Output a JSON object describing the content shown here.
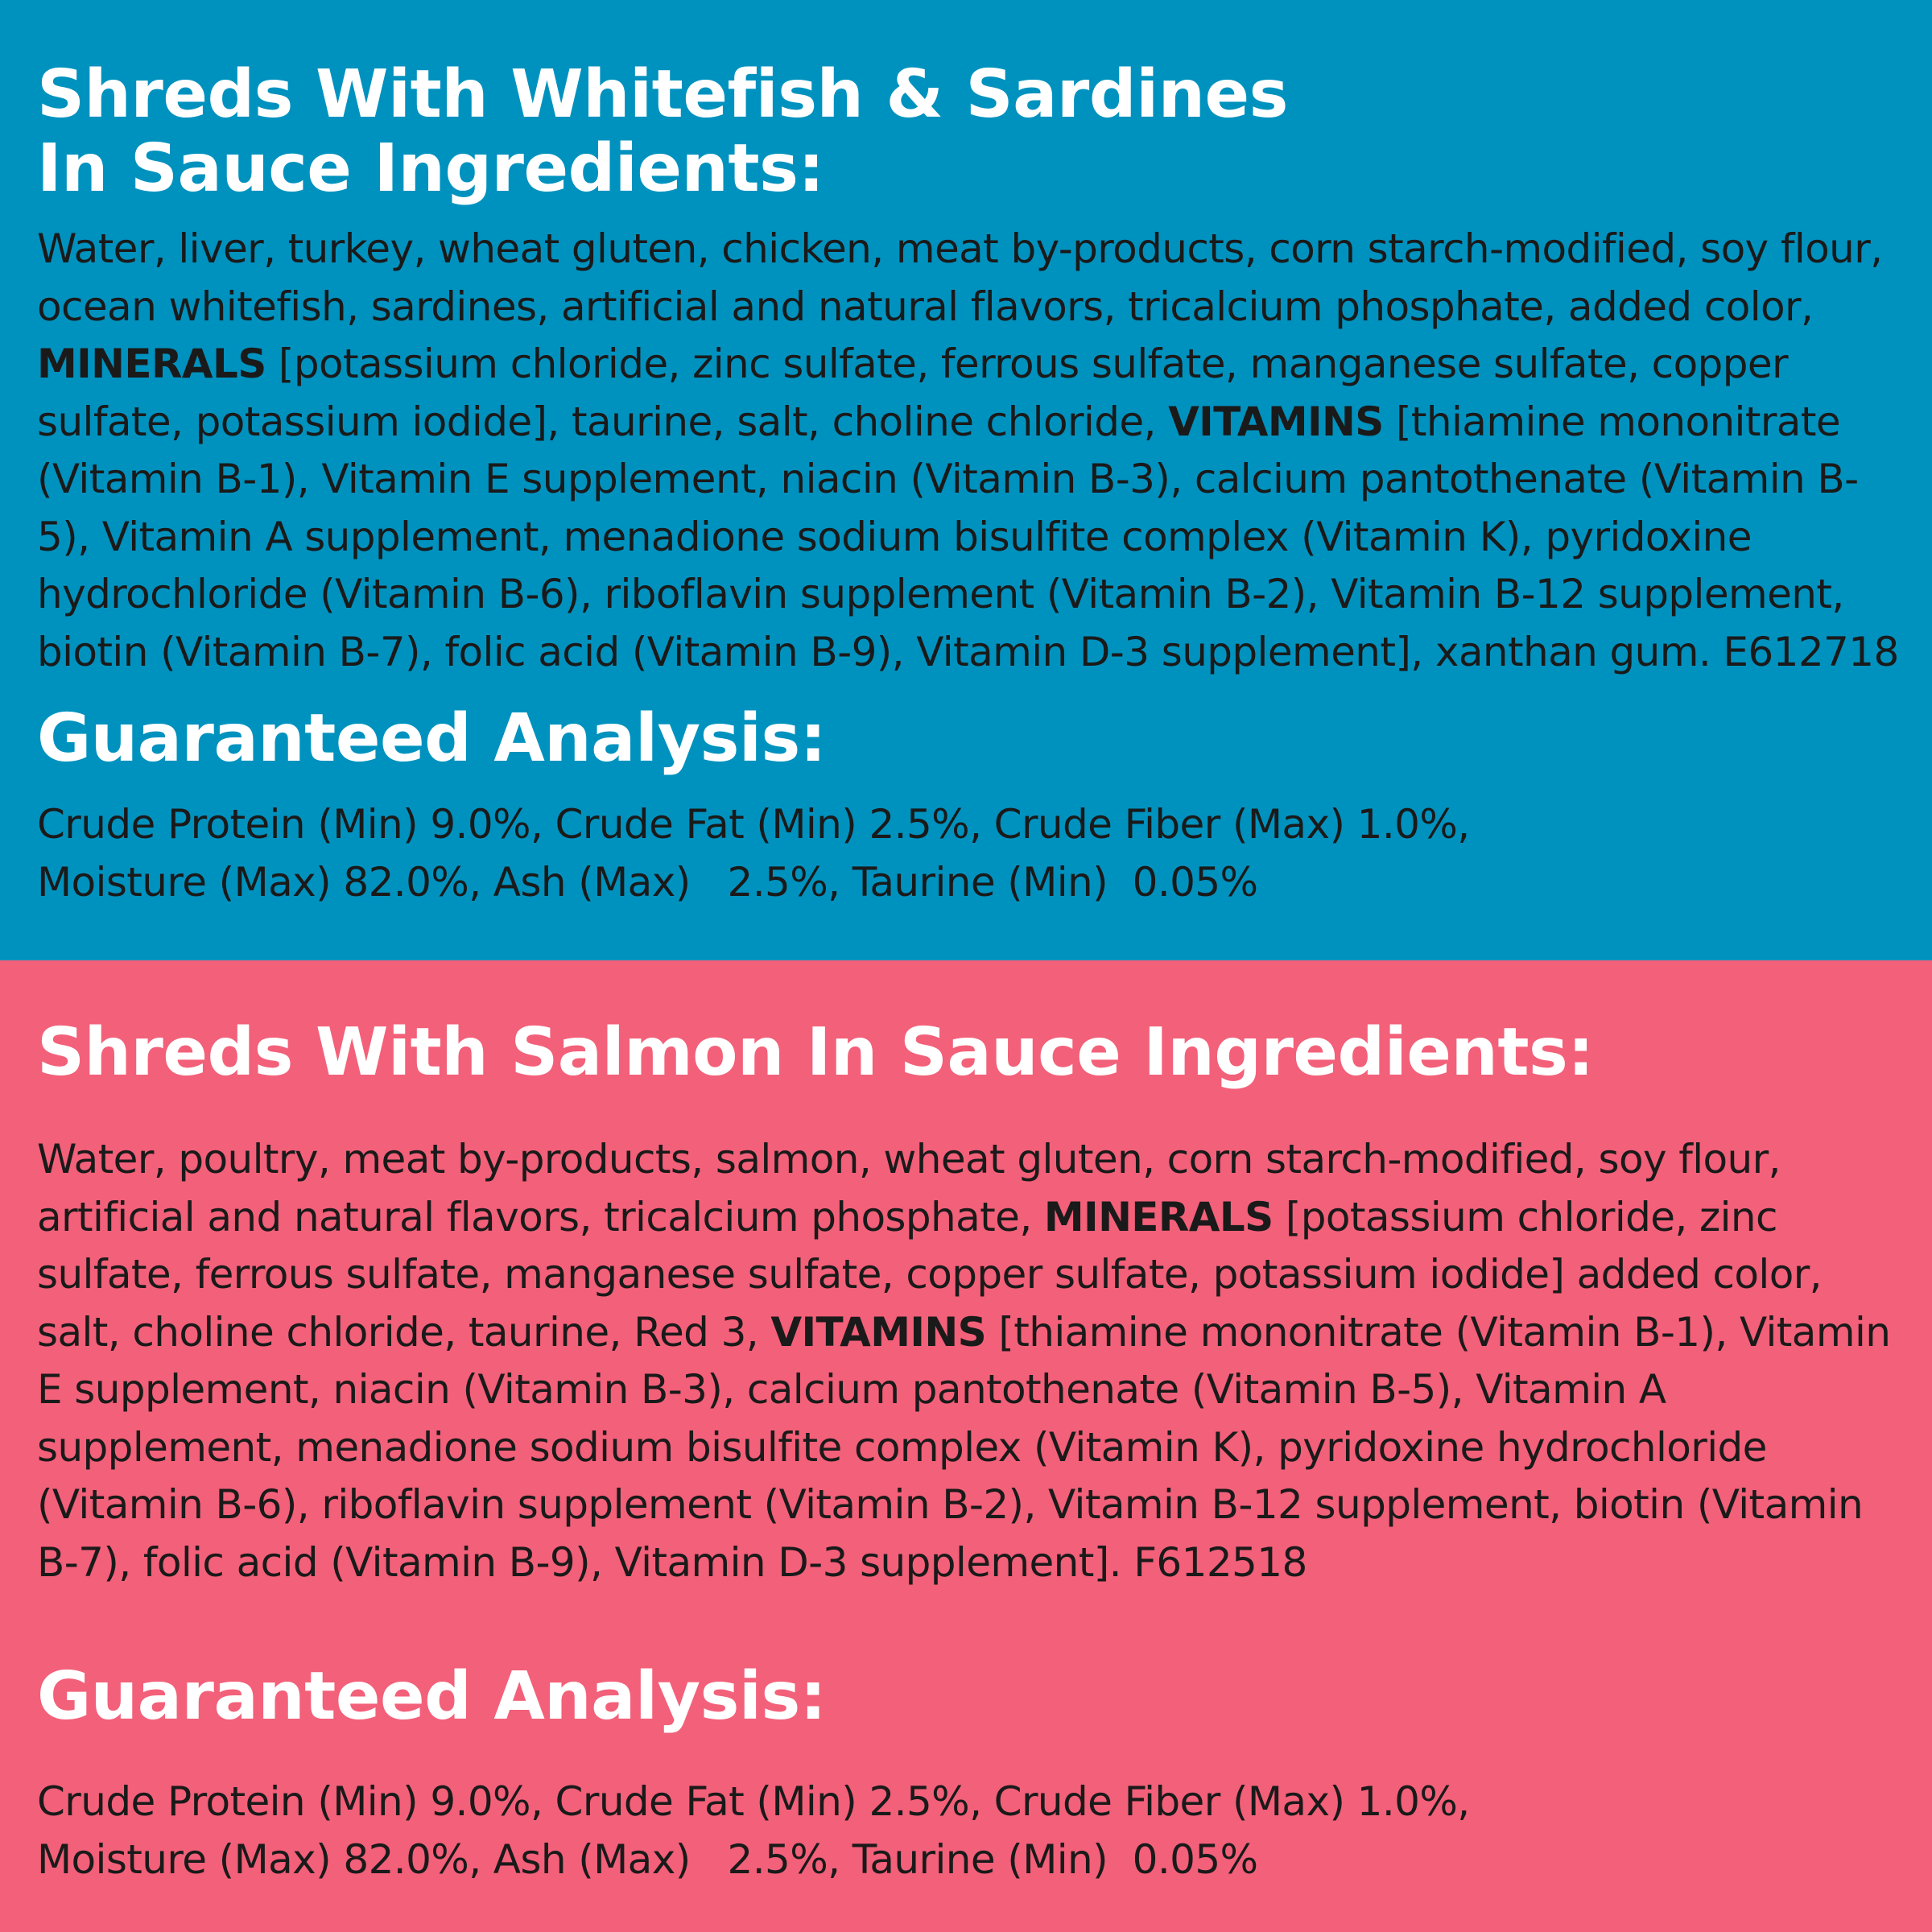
{
  "colors": {
    "blue_panel": "#0092bf",
    "pink_panel": "#f36079",
    "heading_text": "#ffffff",
    "body_text": "#1a1a1a"
  },
  "whitefish": {
    "title_line1": "Shreds With Whitefish & Sardines",
    "title_line2": "In Sauce Ingredients:",
    "ingredients": {
      "part1": "Water, liver, turkey, wheat gluten, chicken, meat by-products, corn starch-modified, soy flour, ocean whitefish, sardines, artificial and natural flavors, tricalcium phosphate, added color, ",
      "minerals_label": "MINERALS",
      "part2": " [potassium chloride, zinc sulfate, ferrous sulfate, manganese sulfate, copper sulfate, potassium iodide], taurine, salt, choline chloride, ",
      "vitamins_label": "VITAMINS",
      "part3": " [thiamine mononitrate (Vitamin B-1), Vitamin E supplement, niacin (Vitamin B-3), calcium pantothenate (Vitamin B-5), Vitamin A supplement, menadione sodium bisulfite complex (Vitamin K), pyridoxine hydrochloride (Vitamin B-6), riboflavin supplement (Vitamin B-2), Vitamin B-12 supplement, biotin (Vitamin B-7), folic acid (Vitamin B-9), Vitamin D-3 supplement], xanthan gum. E612718"
    },
    "ga_title": "Guaranteed Analysis:",
    "ga_line1": "Crude Protein (Min) 9.0%, Crude Fat (Min) 2.5%, Crude Fiber (Max) 1.0%,",
    "ga_line2": "Moisture (Max) 82.0%, Ash (Max)   2.5%, Taurine (Min)  0.05%"
  },
  "salmon": {
    "title": "Shreds With Salmon In Sauce Ingredients:",
    "ingredients": {
      "part1": "Water, poultry, meat by-products, salmon, wheat gluten, corn starch-modified, soy flour, artificial and natural flavors, tricalcium phosphate, ",
      "minerals_label": "MINERALS",
      "part2": " [potassium chloride, zinc sulfate, ferrous sulfate, manganese sulfate, copper sulfate, potassium iodide] added color, salt, choline chloride, taurine, Red 3, ",
      "vitamins_label": "VITAMINS",
      "part3": " [thiamine mononitrate (Vitamin B-1), Vitamin E supplement, niacin (Vitamin B-3), calcium pantothenate (Vitamin B-5), Vitamin A supplement, menadione sodium bisulfite complex (Vitamin K), pyridoxine hydrochloride (Vitamin B-6), riboflavin supplement (Vitamin B-2), Vitamin B-12 supplement, biotin (Vitamin B-7), folic acid (Vitamin B-9), Vitamin D-3 supplement]. F612518"
    },
    "ga_title": "Guaranteed Analysis:",
    "ga_line1": "Crude Protein (Min) 9.0%, Crude Fat (Min) 2.5%, Crude Fiber (Max) 1.0%,",
    "ga_line2": "Moisture (Max) 82.0%, Ash (Max)   2.5%, Taurine (Min)  0.05%"
  }
}
